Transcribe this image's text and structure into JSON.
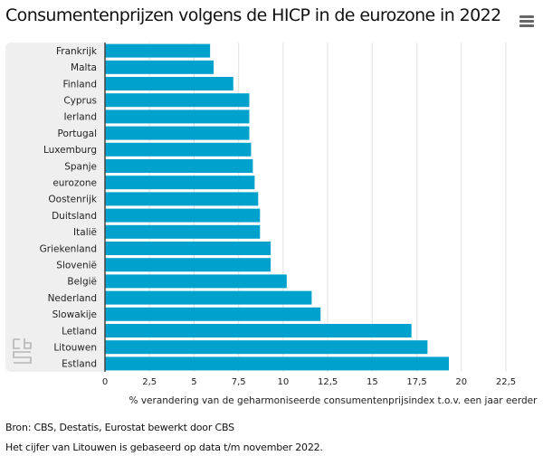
{
  "header": {
    "title": "Consumentenprijzen volgens de HICP in de eurozone in 2022",
    "menu_icon": "hamburger-menu-icon"
  },
  "colors": {
    "bar": "#00a1cd",
    "grid": "#e6e6e6",
    "axis": "#444444",
    "panel": "#efefef"
  },
  "chart_data": {
    "type": "bar",
    "orientation": "horizontal",
    "title": "Consumentenprijzen volgens de HICP in de eurozone in 2022",
    "xlabel": "% verandering van de geharmoniseerde consumentenprijsindex t.o.v. een jaar eerder",
    "ylabel": "",
    "categories": [
      "Frankrijk",
      "Malta",
      "Finland",
      "Cyprus",
      "Ierland",
      "Portugal",
      "Luxemburg",
      "Spanje",
      "eurozone",
      "Oostenrijk",
      "Duitsland",
      "Italië",
      "Griekenland",
      "Slovenië",
      "België",
      "Nederland",
      "Slowakije",
      "Letland",
      "Litouwen",
      "Estland"
    ],
    "values": [
      5.9,
      6.1,
      7.2,
      8.1,
      8.1,
      8.1,
      8.2,
      8.3,
      8.4,
      8.6,
      8.7,
      8.7,
      9.3,
      9.3,
      10.2,
      11.6,
      12.1,
      17.2,
      18.1,
      19.3
    ],
    "xlim": [
      0,
      22.5
    ],
    "xticks": [
      0,
      2.5,
      5,
      7.5,
      10,
      12.5,
      15,
      17.5,
      20,
      22.5
    ],
    "xtick_labels": [
      "0",
      "2,5",
      "5",
      "7,5",
      "10",
      "12,5",
      "15",
      "17,5",
      "20",
      "22,5"
    ],
    "grid": true,
    "legend": "none"
  },
  "footer": {
    "source": "Bron: CBS, Destatis, Eurostat bewerkt door CBS",
    "note": "Het cijfer van Litouwen is gebaseerd op data t/m november 2022."
  },
  "logo": "cbs-logo-icon"
}
